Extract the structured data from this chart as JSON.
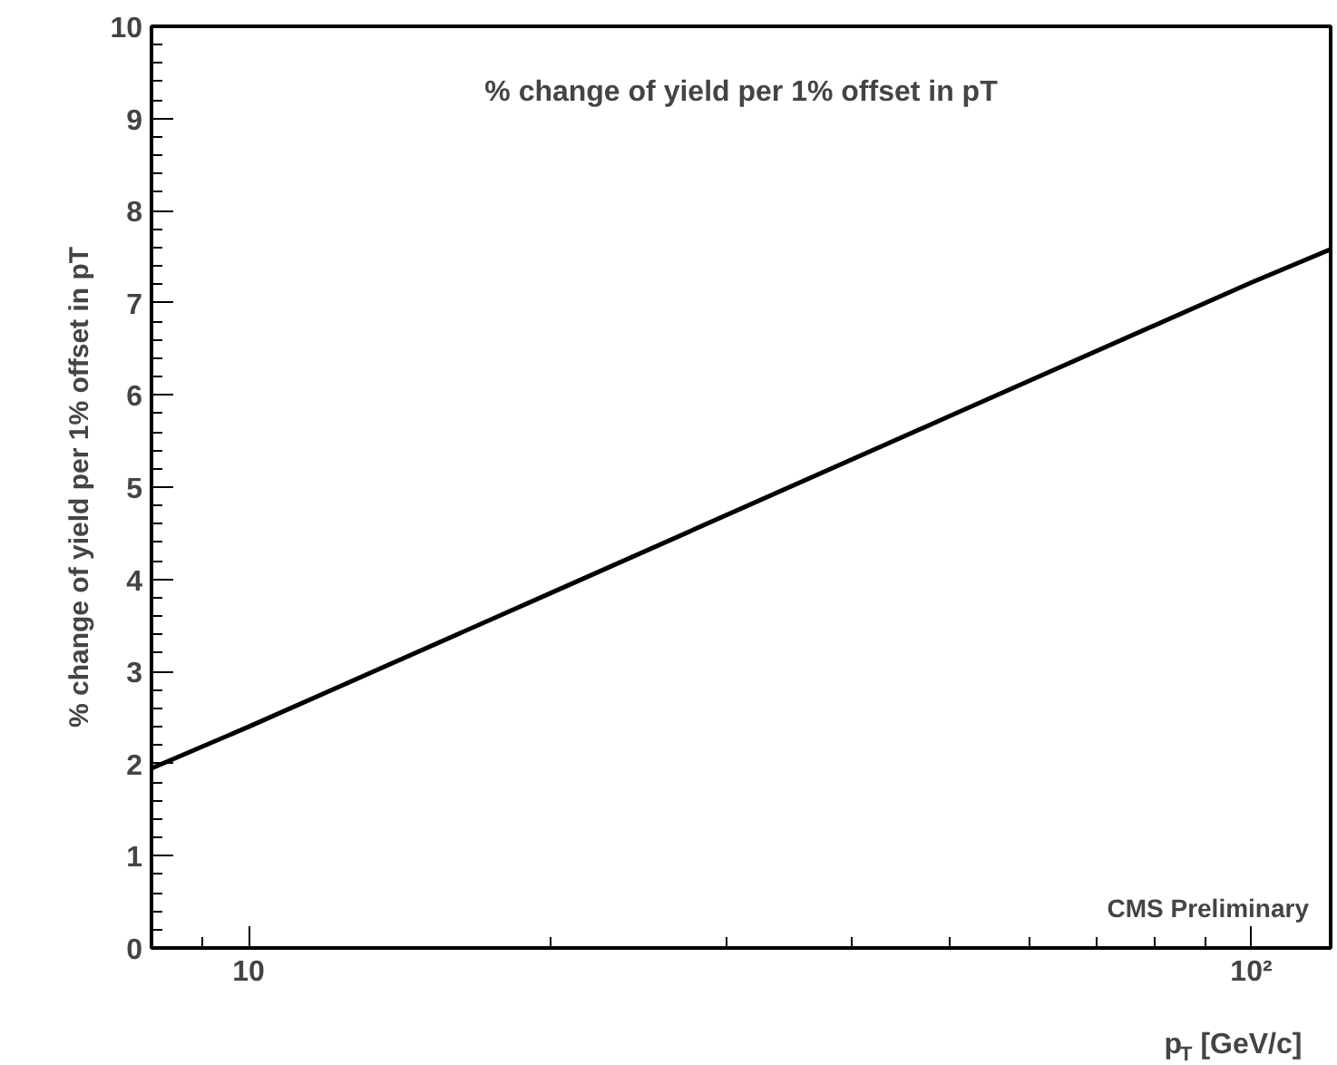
{
  "chart_data": {
    "type": "line",
    "title": "% change of yield per 1% offset in pT",
    "xlabel": "p$_{T}$ [GeV/c]",
    "ylabel": "% change of yield per 1% offset in pT",
    "log": "x",
    "x": [
      8,
      10,
      20,
      50,
      100,
      120
    ],
    "series": [
      {
        "color": "#000000",
        "values": [
          1.95,
          2.4,
          3.85,
          5.77,
          7.22,
          7.58
        ]
      }
    ],
    "xlim": [
      8,
      120
    ],
    "xticks": [
      10,
      {
        "value": 100,
        "label": "10²"
      }
    ],
    "ylim": [
      0,
      10
    ],
    "yticks": [
      0,
      1,
      2,
      3,
      4,
      5,
      6,
      7,
      8,
      9,
      10
    ],
    "annotations": [
      "CMS Preliminary"
    ],
    "grid": false,
    "marker": "none",
    "line_style": "solid"
  }
}
